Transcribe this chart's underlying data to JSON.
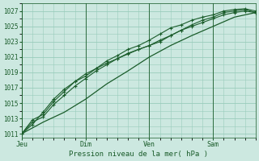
{
  "bg_color": "#cce8e0",
  "grid_color": "#99ccbb",
  "line_color": "#1a5c2a",
  "title": "Pression niveau de la mer( hPa )",
  "ylim": [
    1010.5,
    1028.0
  ],
  "yticks": [
    1011,
    1013,
    1015,
    1017,
    1019,
    1021,
    1023,
    1025,
    1027
  ],
  "day_labels": [
    "Jeu",
    "Dim",
    "Ven",
    "Sam"
  ],
  "day_positions": [
    0,
    36,
    72,
    108
  ],
  "vline_positions": [
    0,
    36,
    72,
    108
  ],
  "xmax": 132,
  "smooth_x": [
    0,
    12,
    24,
    36,
    48,
    60,
    72,
    84,
    96,
    108,
    120,
    132
  ],
  "smooth_y": [
    1011.0,
    1012.5,
    1013.8,
    1015.5,
    1017.5,
    1019.2,
    1021.0,
    1022.5,
    1023.8,
    1025.0,
    1026.2,
    1026.8
  ],
  "line1_x": [
    0,
    6,
    12,
    18,
    24,
    30,
    36,
    42,
    48,
    54,
    60,
    66,
    72,
    78,
    84,
    90,
    96,
    102,
    108,
    114,
    120,
    126,
    132
  ],
  "line1_y": [
    1011.0,
    1012.8,
    1013.5,
    1015.2,
    1016.5,
    1017.8,
    1018.5,
    1019.5,
    1020.2,
    1020.8,
    1021.4,
    1022.0,
    1022.5,
    1023.2,
    1023.8,
    1024.5,
    1025.0,
    1025.5,
    1026.0,
    1026.5,
    1026.8,
    1027.0,
    1026.8
  ],
  "line2_x": [
    0,
    6,
    12,
    18,
    24,
    30,
    36,
    42,
    48,
    54,
    60,
    66,
    72,
    78,
    84,
    90,
    96,
    102,
    108,
    114,
    120,
    126,
    132
  ],
  "line2_y": [
    1011.0,
    1012.5,
    1013.2,
    1014.8,
    1016.0,
    1017.2,
    1018.2,
    1019.2,
    1020.0,
    1020.8,
    1021.5,
    1022.0,
    1022.5,
    1023.0,
    1023.8,
    1024.5,
    1025.2,
    1025.8,
    1026.2,
    1026.8,
    1027.0,
    1027.2,
    1026.8
  ],
  "line3_x": [
    0,
    6,
    12,
    18,
    24,
    30,
    36,
    42,
    48,
    54,
    60,
    66,
    72,
    78,
    84,
    90,
    96,
    102,
    108,
    114,
    120,
    126,
    132
  ],
  "line3_y": [
    1011.0,
    1012.2,
    1013.8,
    1015.5,
    1016.8,
    1017.8,
    1018.8,
    1019.5,
    1020.5,
    1021.2,
    1022.0,
    1022.5,
    1023.2,
    1024.0,
    1024.8,
    1025.2,
    1025.8,
    1026.2,
    1026.5,
    1027.0,
    1027.2,
    1027.3,
    1027.0
  ]
}
